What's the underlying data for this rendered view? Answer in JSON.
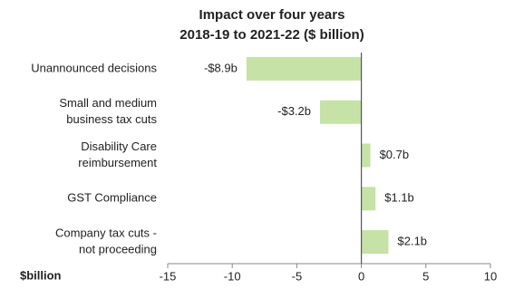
{
  "chart_data": {
    "type": "bar",
    "orientation": "horizontal",
    "title": "Impact over four years",
    "subtitle": "2018-19 to 2021-22 ($ billion)",
    "x_label": "$billion",
    "categories": [
      [
        "Unannounced decisions"
      ],
      [
        "Small and medium",
        "business tax cuts"
      ],
      [
        "Disability Care",
        "reimbursement"
      ],
      [
        "GST Compliance"
      ],
      [
        "Company tax cuts -",
        "not proceeding"
      ]
    ],
    "values": [
      -8.9,
      -3.2,
      0.7,
      1.1,
      2.1
    ],
    "value_labels": [
      "-$8.9b",
      "-$3.2b",
      "$0.7b",
      "$1.1b",
      "$2.1b"
    ],
    "color": "#c6e2a6",
    "xlim": [
      -15,
      10
    ],
    "xticks": [
      -15,
      -10,
      -5,
      0,
      5,
      10
    ]
  }
}
